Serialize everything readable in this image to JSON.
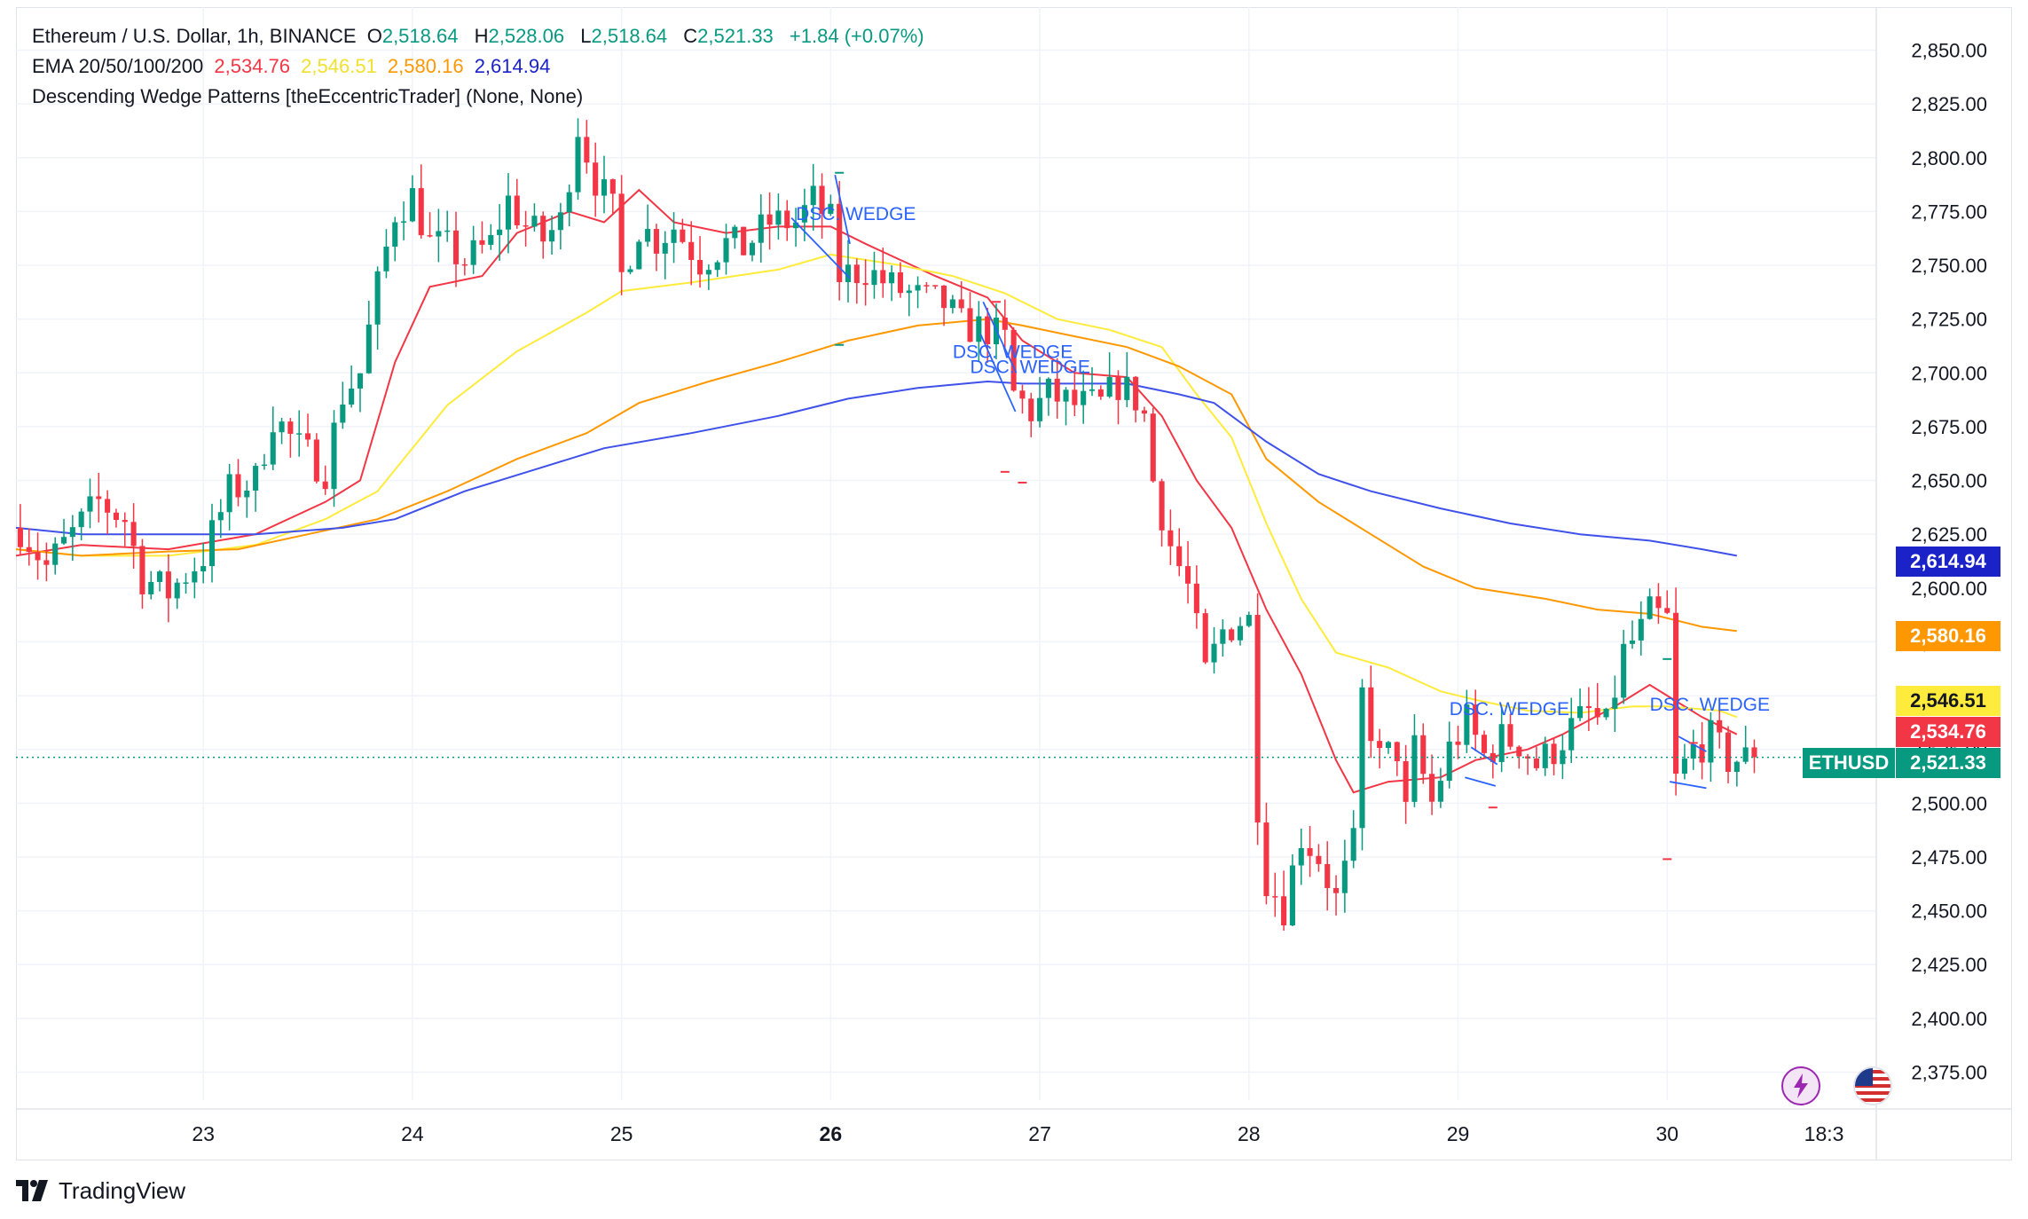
{
  "legend": {
    "line1": {
      "symbol": "Ethereum / U.S. Dollar, 1h, BINANCE",
      "o_label": "O",
      "o": "2,518.64",
      "h_label": "H",
      "h": "2,528.06",
      "l_label": "L",
      "l": "2,518.64",
      "c_label": "C",
      "c": "2,521.33",
      "change": "+1.84 (+0.07%)"
    },
    "line2": {
      "label": "EMA 20/50/100/200",
      "ema20": "2,534.76",
      "ema50": "2,546.51",
      "ema100": "2,580.16",
      "ema200": "2,614.94"
    },
    "line3": "Descending Wedge Patterns [theEccentricTrader] (None, None)"
  },
  "price_badges": {
    "ema200": "2,614.94",
    "ema100": "2,580.16",
    "ema50": "2,546.51",
    "ema20": "2,534.76",
    "symbol": "ETHUSD",
    "last": "2,521.33"
  },
  "branding": "TradingView",
  "colors": {
    "up": "#089981",
    "down": "#f23645",
    "ema20": "#f23645",
    "ema50": "#ffeb3b",
    "ema100": "#ff9800",
    "ema200": "#3f51e8",
    "wedge": "#2962ff",
    "grid": "#f0f3fa"
  },
  "chart_data": {
    "type": "candlestick",
    "title": "Ethereum / U.S. Dollar, 1h, BINANCE",
    "interval": "1h",
    "y_ticks": [
      2375,
      2400,
      2425,
      2450,
      2475,
      2500,
      2525,
      2550,
      2575,
      2600,
      2625,
      2650,
      2675,
      2700,
      2725,
      2750,
      2775,
      2800,
      2825,
      2850
    ],
    "ylim": [
      2362,
      2870
    ],
    "x_ticks": [
      {
        "label": "23",
        "t": 24
      },
      {
        "label": "24",
        "t": 48
      },
      {
        "label": "25",
        "t": 72
      },
      {
        "label": "26",
        "t": 96,
        "bold": true
      },
      {
        "label": "27",
        "t": 120
      },
      {
        "label": "28",
        "t": 144
      },
      {
        "label": "29",
        "t": 168
      },
      {
        "label": "30",
        "t": 192
      },
      {
        "label": "18:3",
        "t": 210
      }
    ],
    "xlim": [
      2.5,
      216
    ],
    "last_price": 2521.33,
    "anchors": [
      [
        3,
        2628
      ],
      [
        6,
        2610
      ],
      [
        9,
        2625
      ],
      [
        12,
        2640
      ],
      [
        15,
        2632
      ],
      [
        17,
        2605
      ],
      [
        20,
        2598
      ],
      [
        24,
        2615
      ],
      [
        27,
        2645
      ],
      [
        30,
        2650
      ],
      [
        32,
        2680
      ],
      [
        35,
        2665
      ],
      [
        38,
        2655
      ],
      [
        40,
        2690
      ],
      [
        42,
        2700
      ],
      [
        44,
        2740
      ],
      [
        46,
        2775
      ],
      [
        48,
        2782
      ],
      [
        50,
        2760
      ],
      [
        52,
        2758
      ],
      [
        54,
        2752
      ],
      [
        57,
        2760
      ],
      [
        59,
        2780
      ],
      [
        61,
        2768
      ],
      [
        63,
        2762
      ],
      [
        65,
        2770
      ],
      [
        67,
        2815
      ],
      [
        69,
        2790
      ],
      [
        71,
        2775
      ],
      [
        72,
        2745
      ],
      [
        74,
        2768
      ],
      [
        76,
        2762
      ],
      [
        78,
        2768
      ],
      [
        81,
        2752
      ],
      [
        84,
        2760
      ],
      [
        86,
        2758
      ],
      [
        89,
        2770
      ],
      [
        92,
        2770
      ],
      [
        94,
        2780
      ],
      [
        96,
        2770
      ],
      [
        97,
        2745
      ],
      [
        100,
        2748
      ],
      [
        103,
        2740
      ],
      [
        106,
        2735
      ],
      [
        109,
        2732
      ],
      [
        111,
        2722
      ],
      [
        114,
        2720
      ],
      [
        116,
        2715
      ],
      [
        117,
        2690
      ],
      [
        119,
        2682
      ],
      [
        121,
        2690
      ],
      [
        124,
        2685
      ],
      [
        127,
        2685
      ],
      [
        129,
        2695
      ],
      [
        131,
        2688
      ],
      [
        132,
        2680
      ],
      [
        133,
        2650
      ],
      [
        135,
        2620
      ],
      [
        137,
        2600
      ],
      [
        139,
        2560
      ],
      [
        141,
        2580
      ],
      [
        143,
        2585
      ],
      [
        144,
        2585
      ],
      [
        145,
        2500
      ],
      [
        146,
        2465
      ],
      [
        148,
        2452
      ],
      [
        150,
        2485
      ],
      [
        152,
        2475
      ],
      [
        154,
        2455
      ],
      [
        156,
        2480
      ],
      [
        157,
        2550
      ],
      [
        159,
        2520
      ],
      [
        161,
        2525
      ],
      [
        162,
        2495
      ],
      [
        163,
        2525
      ],
      [
        165,
        2500
      ],
      [
        167,
        2525
      ],
      [
        169,
        2538
      ],
      [
        171,
        2522
      ],
      [
        173,
        2530
      ],
      [
        175,
        2528
      ],
      [
        177,
        2518
      ],
      [
        179,
        2525
      ],
      [
        181,
        2535
      ],
      [
        183,
        2542
      ],
      [
        185,
        2535
      ],
      [
        187,
        2570
      ],
      [
        189,
        2580
      ],
      [
        190,
        2588
      ],
      [
        192,
        2585
      ],
      [
        193,
        2510
      ],
      [
        195,
        2525
      ],
      [
        197,
        2530
      ],
      [
        199,
        2520
      ],
      [
        202,
        2521.33
      ]
    ],
    "series": [
      {
        "name": "EMA 20",
        "color": "#f23645",
        "points": [
          [
            2.5,
            2615
          ],
          [
            10,
            2620
          ],
          [
            20,
            2618
          ],
          [
            30,
            2625
          ],
          [
            38,
            2640
          ],
          [
            42,
            2650
          ],
          [
            46,
            2705
          ],
          [
            50,
            2740
          ],
          [
            56,
            2745
          ],
          [
            60,
            2765
          ],
          [
            66,
            2775
          ],
          [
            70,
            2770
          ],
          [
            74,
            2785
          ],
          [
            78,
            2770
          ],
          [
            84,
            2765
          ],
          [
            90,
            2768
          ],
          [
            96,
            2768
          ],
          [
            100,
            2760
          ],
          [
            108,
            2745
          ],
          [
            114,
            2735
          ],
          [
            118,
            2715
          ],
          [
            124,
            2700
          ],
          [
            130,
            2698
          ],
          [
            134,
            2680
          ],
          [
            138,
            2650
          ],
          [
            142,
            2628
          ],
          [
            146,
            2590
          ],
          [
            150,
            2560
          ],
          [
            154,
            2520
          ],
          [
            156,
            2505
          ],
          [
            160,
            2510
          ],
          [
            166,
            2512
          ],
          [
            170,
            2520
          ],
          [
            176,
            2525
          ],
          [
            180,
            2532
          ],
          [
            186,
            2545
          ],
          [
            190,
            2555
          ],
          [
            192,
            2550
          ],
          [
            196,
            2540
          ],
          [
            200,
            2532
          ]
        ]
      },
      {
        "name": "EMA 50",
        "color": "#ffeb3b",
        "points": [
          [
            2.5,
            2618
          ],
          [
            10,
            2615
          ],
          [
            20,
            2615
          ],
          [
            30,
            2620
          ],
          [
            38,
            2632
          ],
          [
            44,
            2645
          ],
          [
            48,
            2665
          ],
          [
            52,
            2685
          ],
          [
            60,
            2710
          ],
          [
            68,
            2728
          ],
          [
            72,
            2738
          ],
          [
            80,
            2742
          ],
          [
            90,
            2748
          ],
          [
            96,
            2755
          ],
          [
            104,
            2750
          ],
          [
            110,
            2745
          ],
          [
            116,
            2737
          ],
          [
            122,
            2725
          ],
          [
            128,
            2720
          ],
          [
            134,
            2712
          ],
          [
            138,
            2690
          ],
          [
            142,
            2670
          ],
          [
            146,
            2630
          ],
          [
            150,
            2595
          ],
          [
            154,
            2570
          ],
          [
            160,
            2563
          ],
          [
            166,
            2552
          ],
          [
            170,
            2548
          ],
          [
            176,
            2543
          ],
          [
            182,
            2542
          ],
          [
            188,
            2545
          ],
          [
            192,
            2545
          ],
          [
            198,
            2543
          ],
          [
            200,
            2540
          ]
        ]
      },
      {
        "name": "EMA 100",
        "color": "#ff9800",
        "points": [
          [
            2.5,
            2618
          ],
          [
            10,
            2615
          ],
          [
            20,
            2617
          ],
          [
            28,
            2618
          ],
          [
            36,
            2625
          ],
          [
            44,
            2632
          ],
          [
            52,
            2645
          ],
          [
            60,
            2660
          ],
          [
            68,
            2672
          ],
          [
            74,
            2686
          ],
          [
            82,
            2696
          ],
          [
            90,
            2705
          ],
          [
            98,
            2715
          ],
          [
            106,
            2722
          ],
          [
            114,
            2725
          ],
          [
            118,
            2722
          ],
          [
            124,
            2717
          ],
          [
            130,
            2712
          ],
          [
            136,
            2703
          ],
          [
            142,
            2690
          ],
          [
            146,
            2660
          ],
          [
            152,
            2640
          ],
          [
            158,
            2625
          ],
          [
            164,
            2610
          ],
          [
            170,
            2600
          ],
          [
            178,
            2595
          ],
          [
            184,
            2590
          ],
          [
            190,
            2588
          ],
          [
            196,
            2582
          ],
          [
            200,
            2580
          ]
        ]
      },
      {
        "name": "EMA 200",
        "color": "#3f51e8",
        "points": [
          [
            2.5,
            2628
          ],
          [
            10,
            2625
          ],
          [
            20,
            2625
          ],
          [
            30,
            2625
          ],
          [
            40,
            2628
          ],
          [
            46,
            2632
          ],
          [
            54,
            2645
          ],
          [
            62,
            2655
          ],
          [
            70,
            2665
          ],
          [
            80,
            2672
          ],
          [
            90,
            2680
          ],
          [
            98,
            2688
          ],
          [
            106,
            2693
          ],
          [
            114,
            2696
          ],
          [
            118,
            2695
          ],
          [
            124,
            2695
          ],
          [
            130,
            2695
          ],
          [
            136,
            2690
          ],
          [
            140,
            2686
          ],
          [
            146,
            2668
          ],
          [
            152,
            2653
          ],
          [
            158,
            2645
          ],
          [
            166,
            2637
          ],
          [
            174,
            2630
          ],
          [
            182,
            2625
          ],
          [
            190,
            2622
          ],
          [
            196,
            2618
          ],
          [
            200,
            2615
          ]
        ]
      }
    ],
    "wedges": [
      {
        "label": "DSC. WEDGE",
        "label_at": [
          92,
          2771
        ],
        "upper": [
          [
            96.5,
            2792
          ],
          [
            98.2,
            2760
          ]
        ],
        "lower": [
          [
            91.5,
            2772
          ],
          [
            98.2,
            2744
          ]
        ]
      },
      {
        "label": "DSC. WEDGE",
        "label_at": [
          110,
          2707
        ],
        "upper": [
          [
            113.5,
            2733
          ],
          [
            117.3,
            2700
          ]
        ],
        "lower": [
          [
            113.2,
            2718
          ],
          [
            117.2,
            2682
          ]
        ]
      },
      {
        "label": "DSC. WEDGE",
        "label_at": [
          112,
          2700
        ],
        "upper": [],
        "lower": []
      },
      {
        "label": "DSC. WEDGE",
        "label_at": [
          167,
          2541
        ],
        "upper": [
          [
            169.5,
            2526
          ],
          [
            172.5,
            2518
          ]
        ],
        "lower": [
          [
            168.8,
            2512
          ],
          [
            172.3,
            2508
          ]
        ]
      },
      {
        "label": "DSC. WEDGE",
        "label_at": [
          190,
          2543
        ],
        "upper": [
          [
            193.3,
            2531
          ],
          [
            196.5,
            2524
          ]
        ],
        "lower": [
          [
            192.3,
            2510
          ],
          [
            196.5,
            2507
          ]
        ]
      }
    ],
    "marks": [
      [
        97,
        2793
      ],
      [
        97,
        2713
      ],
      [
        115,
        2733
      ],
      [
        116,
        2654
      ],
      [
        118,
        2649
      ],
      [
        172,
        2498
      ],
      [
        192,
        2567
      ],
      [
        192,
        2474
      ],
      [
        195,
        2528
      ]
    ]
  }
}
